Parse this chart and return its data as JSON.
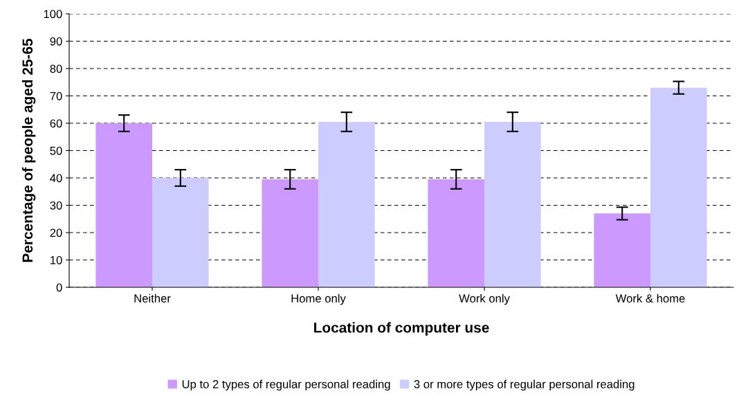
{
  "chart_data": {
    "type": "bar",
    "xlabel": "Location of computer use",
    "ylabel": "Percentage of people aged 25-65",
    "categories": [
      "Neither",
      "Home only",
      "Work only",
      "Work & home"
    ],
    "series": [
      {
        "name": "Up to 2 types of regular personal reading",
        "color": "#cc99ff",
        "values": [
          60,
          39.5,
          39.5,
          27
        ],
        "errors": [
          3,
          3.5,
          3.5,
          2.3
        ]
      },
      {
        "name": "3 or more types of regular personal reading",
        "color": "#ccccff",
        "values": [
          40,
          60.5,
          60.5,
          73
        ],
        "errors": [
          3,
          3.5,
          3.5,
          2.3
        ]
      }
    ],
    "ylim": [
      0,
      100
    ],
    "yticks": [
      0,
      10,
      20,
      30,
      40,
      50,
      60,
      70,
      80,
      90,
      100
    ],
    "grid": "y",
    "legend": "bottom"
  }
}
